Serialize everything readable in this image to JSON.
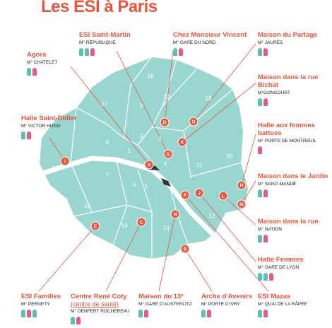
{
  "title": "Les ESI à Paris",
  "arrondissements": [
    "1",
    "2",
    "3",
    "4",
    "5",
    "6",
    "7",
    "8",
    "9",
    "10",
    "11",
    "12",
    "13",
    "14",
    "15",
    "16",
    "17",
    "18",
    "19",
    "20"
  ],
  "locations": [
    {
      "name": "ESI Saint-Martin",
      "metro": "M° RÉPUBLIQUE",
      "marker": "G"
    },
    {
      "name": "Chez Monsieur Vincent",
      "metro": "M° GARE DU NORD",
      "marker": "D"
    },
    {
      "name": "Maison du Partage",
      "metro": "M° JAURÈS",
      "marker": "O"
    },
    {
      "name": "Agora",
      "metro": "M° CHATELET",
      "marker": "A"
    },
    {
      "name": "Maison dans la rue Bichat",
      "metro": "M°GONCOURT",
      "marker": "K"
    },
    {
      "name": "Halle Saint-Didier",
      "metro": "M° VICTOR HUGO",
      "marker": "I"
    },
    {
      "name": "Halte aux femmes battues",
      "metro": "M° PORTE DE MONTREUIL",
      "marker": "H"
    },
    {
      "name": "Maison dans le Jardin",
      "metro": "M° SAINT-MANDÉ",
      "marker": "M"
    },
    {
      "name": "Maison dans la rue",
      "metro": "M° NATION",
      "marker": "L"
    },
    {
      "name": "Halte Femmes",
      "metro": "M° GARE DE LYON",
      "marker": "J"
    },
    {
      "name": "ESI Familles",
      "metro": "M° PERNETY",
      "marker": "E"
    },
    {
      "name": "Centre René Coty",
      "note": "(centre de santé)",
      "metro": "M° DENFERT ROCHEREAU",
      "marker": "C"
    },
    {
      "name": "Maison du 13ᵉ",
      "metro": "M° GARE D'AUSTERLITZ",
      "marker": "N"
    },
    {
      "name": "Arche d'Avenirs",
      "metro": "M° PORTE D'IVRY",
      "marker": "B"
    },
    {
      "name": "ESI Mazas",
      "metro": "M° QUAI DE LA RÂPÉE",
      "marker": "F"
    }
  ]
}
